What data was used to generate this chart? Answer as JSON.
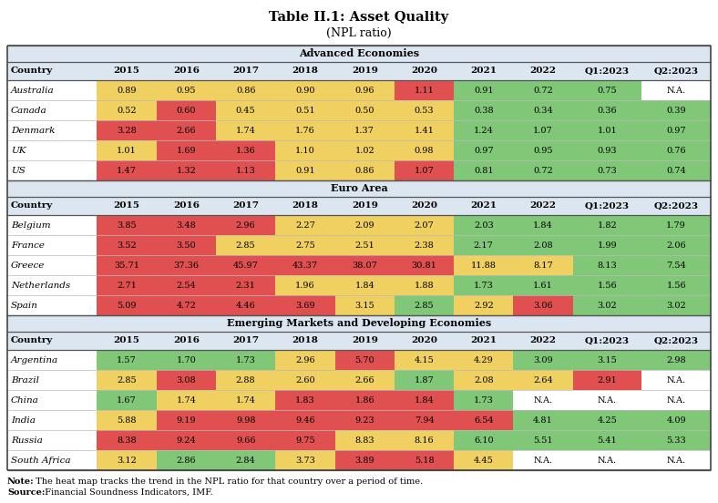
{
  "title": "Table II.1: Asset Quality",
  "subtitle": "(NPL ratio)",
  "columns": [
    "Country",
    "2015",
    "2016",
    "2017",
    "2018",
    "2019",
    "2020",
    "2021",
    "2022",
    "Q1:2023",
    "Q2:2023"
  ],
  "sections": [
    {
      "name": "Advanced Economies",
      "rows": [
        {
          "country": "Australia",
          "values": [
            "0.89",
            "0.95",
            "0.86",
            "0.90",
            "0.96",
            "1.11",
            "0.91",
            "0.72",
            "0.75",
            "N.A."
          ],
          "colors": [
            "#f0d060",
            "#f0d060",
            "#f0d060",
            "#f0d060",
            "#f0d060",
            "#e05050",
            "#80c878",
            "#80c878",
            "#80c878",
            "#ffffff"
          ]
        },
        {
          "country": "Canada",
          "values": [
            "0.52",
            "0.60",
            "0.45",
            "0.51",
            "0.50",
            "0.53",
            "0.38",
            "0.34",
            "0.36",
            "0.39"
          ],
          "colors": [
            "#f0d060",
            "#e05050",
            "#f0d060",
            "#f0d060",
            "#f0d060",
            "#f0d060",
            "#80c878",
            "#80c878",
            "#80c878",
            "#80c878"
          ]
        },
        {
          "country": "Denmark",
          "values": [
            "3.28",
            "2.66",
            "1.74",
            "1.76",
            "1.37",
            "1.41",
            "1.24",
            "1.07",
            "1.01",
            "0.97"
          ],
          "colors": [
            "#e05050",
            "#e05050",
            "#f0d060",
            "#f0d060",
            "#f0d060",
            "#f0d060",
            "#80c878",
            "#80c878",
            "#80c878",
            "#80c878"
          ]
        },
        {
          "country": "UK",
          "values": [
            "1.01",
            "1.69",
            "1.36",
            "1.10",
            "1.02",
            "0.98",
            "0.97",
            "0.95",
            "0.93",
            "0.76"
          ],
          "colors": [
            "#f0d060",
            "#e05050",
            "#e05050",
            "#f0d060",
            "#f0d060",
            "#f0d060",
            "#80c878",
            "#80c878",
            "#80c878",
            "#80c878"
          ]
        },
        {
          "country": "US",
          "values": [
            "1.47",
            "1.32",
            "1.13",
            "0.91",
            "0.86",
            "1.07",
            "0.81",
            "0.72",
            "0.73",
            "0.74"
          ],
          "colors": [
            "#e05050",
            "#e05050",
            "#e05050",
            "#f0d060",
            "#f0d060",
            "#e05050",
            "#80c878",
            "#80c878",
            "#80c878",
            "#80c878"
          ]
        }
      ]
    },
    {
      "name": "Euro Area",
      "rows": [
        {
          "country": "Belgium",
          "values": [
            "3.85",
            "3.48",
            "2.96",
            "2.27",
            "2.09",
            "2.07",
            "2.03",
            "1.84",
            "1.82",
            "1.79"
          ],
          "colors": [
            "#e05050",
            "#e05050",
            "#e05050",
            "#f0d060",
            "#f0d060",
            "#f0d060",
            "#80c878",
            "#80c878",
            "#80c878",
            "#80c878"
          ]
        },
        {
          "country": "France",
          "values": [
            "3.52",
            "3.50",
            "2.85",
            "2.75",
            "2.51",
            "2.38",
            "2.17",
            "2.08",
            "1.99",
            "2.06"
          ],
          "colors": [
            "#e05050",
            "#e05050",
            "#f0d060",
            "#f0d060",
            "#f0d060",
            "#f0d060",
            "#80c878",
            "#80c878",
            "#80c878",
            "#80c878"
          ]
        },
        {
          "country": "Greece",
          "values": [
            "35.71",
            "37.36",
            "45.97",
            "43.37",
            "38.07",
            "30.81",
            "11.88",
            "8.17",
            "8.13",
            "7.54"
          ],
          "colors": [
            "#e05050",
            "#e05050",
            "#e05050",
            "#e05050",
            "#e05050",
            "#e05050",
            "#f0d060",
            "#f0d060",
            "#80c878",
            "#80c878"
          ]
        },
        {
          "country": "Netherlands",
          "values": [
            "2.71",
            "2.54",
            "2.31",
            "1.96",
            "1.84",
            "1.88",
            "1.73",
            "1.61",
            "1.56",
            "1.56"
          ],
          "colors": [
            "#e05050",
            "#e05050",
            "#e05050",
            "#f0d060",
            "#f0d060",
            "#f0d060",
            "#80c878",
            "#80c878",
            "#80c878",
            "#80c878"
          ]
        },
        {
          "country": "Spain",
          "values": [
            "5.09",
            "4.72",
            "4.46",
            "3.69",
            "3.15",
            "2.85",
            "2.92",
            "3.06",
            "3.02",
            "3.02"
          ],
          "colors": [
            "#e05050",
            "#e05050",
            "#e05050",
            "#e05050",
            "#f0d060",
            "#80c878",
            "#f0d060",
            "#e05050",
            "#80c878",
            "#80c878"
          ]
        }
      ]
    },
    {
      "name": "Emerging Markets and Developing Economies",
      "rows": [
        {
          "country": "Argentina",
          "values": [
            "1.57",
            "1.70",
            "1.73",
            "2.96",
            "5.70",
            "4.15",
            "4.29",
            "3.09",
            "3.15",
            "2.98"
          ],
          "colors": [
            "#80c878",
            "#80c878",
            "#80c878",
            "#f0d060",
            "#e05050",
            "#f0d060",
            "#f0d060",
            "#80c878",
            "#80c878",
            "#80c878"
          ]
        },
        {
          "country": "Brazil",
          "values": [
            "2.85",
            "3.08",
            "2.88",
            "2.60",
            "2.66",
            "1.87",
            "2.08",
            "2.64",
            "2.91",
            "N.A."
          ],
          "colors": [
            "#f0d060",
            "#e05050",
            "#f0d060",
            "#f0d060",
            "#f0d060",
            "#80c878",
            "#f0d060",
            "#f0d060",
            "#e05050",
            "#ffffff"
          ]
        },
        {
          "country": "China",
          "values": [
            "1.67",
            "1.74",
            "1.74",
            "1.83",
            "1.86",
            "1.84",
            "1.73",
            "N.A.",
            "N.A.",
            "N.A."
          ],
          "colors": [
            "#80c878",
            "#f0d060",
            "#f0d060",
            "#e05050",
            "#e05050",
            "#e05050",
            "#80c878",
            "#ffffff",
            "#ffffff",
            "#ffffff"
          ]
        },
        {
          "country": "India",
          "values": [
            "5.88",
            "9.19",
            "9.98",
            "9.46",
            "9.23",
            "7.94",
            "6.54",
            "4.81",
            "4.25",
            "4.09"
          ],
          "colors": [
            "#f0d060",
            "#e05050",
            "#e05050",
            "#e05050",
            "#e05050",
            "#e05050",
            "#e05050",
            "#80c878",
            "#80c878",
            "#80c878"
          ]
        },
        {
          "country": "Russia",
          "values": [
            "8.38",
            "9.24",
            "9.66",
            "9.75",
            "8.83",
            "8.16",
            "6.10",
            "5.51",
            "5.41",
            "5.33"
          ],
          "colors": [
            "#e05050",
            "#e05050",
            "#e05050",
            "#e05050",
            "#f0d060",
            "#f0d060",
            "#80c878",
            "#80c878",
            "#80c878",
            "#80c878"
          ]
        },
        {
          "country": "South Africa",
          "values": [
            "3.12",
            "2.86",
            "2.84",
            "3.73",
            "3.89",
            "5.18",
            "4.45",
            "N.A.",
            "N.A.",
            "N.A."
          ],
          "colors": [
            "#f0d060",
            "#80c878",
            "#80c878",
            "#f0d060",
            "#e05050",
            "#e05050",
            "#f0d060",
            "#ffffff",
            "#ffffff",
            "#ffffff"
          ]
        }
      ]
    }
  ],
  "note_bold": "Note:",
  "note_text": " The heat map tracks the trend in the NPL ratio for that country over a period of time.",
  "source_bold": "Source:",
  "source_text": " Financial Soundness Indicators, IMF.",
  "section_bg": "#dce6f1",
  "col_header_bg": "#dce6f1"
}
